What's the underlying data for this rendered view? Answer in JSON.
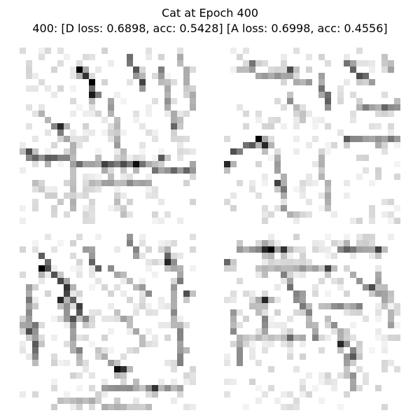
{
  "figure": {
    "title_line_1": "Cat at Epoch 400",
    "title_line_2": "400: [D loss: 0.6898, acc: 0.5428]  [A loss: 0.6998, acc: 0.4556]",
    "colormap": "gray_r",
    "background": "#ffffff"
  },
  "panels": [
    {
      "image_size": [
        28,
        28
      ],
      "strokes": [
        {
          "from": [
            9,
            3
          ],
          "to": [
            12,
            7
          ],
          "intensity": 0.9
        },
        {
          "from": [
            3,
            10
          ],
          "to": [
            8,
            15
          ],
          "intensity": 0.45
        },
        {
          "from": [
            1,
            17
          ],
          "to": [
            27,
            19
          ],
          "intensity": 0.55
        },
        {
          "from": [
            11,
            21
          ],
          "to": [
            20,
            21
          ],
          "intensity": 0.4
        },
        {
          "from": [
            17,
            1
          ],
          "to": [
            19,
            6
          ],
          "intensity": 0.65
        },
        {
          "from": [
            22,
            3
          ],
          "to": [
            24,
            12
          ],
          "intensity": 0.45
        },
        {
          "from": [
            14,
            8
          ],
          "to": [
            16,
            18
          ],
          "intensity": 0.35
        },
        {
          "from": [
            8,
            16
          ],
          "to": [
            8,
            25
          ],
          "intensity": 0.3
        },
        {
          "from": [
            15,
            23
          ],
          "to": [
            16,
            26
          ],
          "intensity": 0.3
        },
        {
          "from": [
            25,
            1
          ],
          "to": [
            27,
            9
          ],
          "intensity": 0.35
        },
        {
          "from": [
            2,
            21
          ],
          "to": [
            6,
            24
          ],
          "intensity": 0.25
        }
      ],
      "dots": [
        {
          "at": [
            9,
            3
          ],
          "intensity": 1.0
        },
        {
          "at": [
            11,
            7
          ],
          "intensity": 0.9
        },
        {
          "at": [
            6,
            12
          ],
          "intensity": 0.85
        },
        {
          "at": [
            18,
            18
          ],
          "intensity": 0.95
        },
        {
          "at": [
            1,
            16
          ],
          "intensity": 0.7
        },
        {
          "at": [
            13,
            18
          ],
          "intensity": 0.75
        },
        {
          "at": [
            16,
            18
          ],
          "intensity": 0.7
        },
        {
          "at": [
            22,
            17
          ],
          "intensity": 0.65
        },
        {
          "at": [
            24,
            12
          ],
          "intensity": 0.6
        }
      ],
      "noise_density": 0.22
    },
    {
      "image_size": [
        28,
        28
      ],
      "strokes": [
        {
          "from": [
            1,
            16
          ],
          "to": [
            5,
            14
          ],
          "intensity": 0.75
        },
        {
          "from": [
            8,
            17
          ],
          "to": [
            9,
            23
          ],
          "intensity": 0.55
        },
        {
          "from": [
            2,
            3
          ],
          "to": [
            13,
            5
          ],
          "intensity": 0.4
        },
        {
          "from": [
            15,
            5
          ],
          "to": [
            16,
            9
          ],
          "intensity": 0.55
        },
        {
          "from": [
            19,
            2
          ],
          "to": [
            23,
            5
          ],
          "intensity": 0.65
        },
        {
          "from": [
            20,
            14
          ],
          "to": [
            27,
            14
          ],
          "intensity": 0.5
        },
        {
          "from": [
            21,
            9
          ],
          "to": [
            27,
            9
          ],
          "intensity": 0.45
        },
        {
          "from": [
            10,
            8
          ],
          "to": [
            12,
            10
          ],
          "intensity": 0.4
        },
        {
          "from": [
            15,
            17
          ],
          "to": [
            16,
            25
          ],
          "intensity": 0.3
        },
        {
          "from": [
            9,
            25
          ],
          "to": [
            11,
            26
          ],
          "intensity": 0.4
        },
        {
          "from": [
            25,
            1
          ],
          "to": [
            26,
            3
          ],
          "intensity": 0.35
        }
      ],
      "dots": [
        {
          "at": [
            5,
            14
          ],
          "intensity": 1.0
        },
        {
          "at": [
            6,
            15
          ],
          "intensity": 0.85
        },
        {
          "at": [
            0,
            18
          ],
          "intensity": 0.85
        },
        {
          "at": [
            8,
            21
          ],
          "intensity": 0.75
        },
        {
          "at": [
            10,
            3
          ],
          "intensity": 0.7
        },
        {
          "at": [
            21,
            4
          ],
          "intensity": 0.7
        },
        {
          "at": [
            19,
            14
          ],
          "intensity": 0.65
        },
        {
          "at": [
            25,
            9
          ],
          "intensity": 0.6
        },
        {
          "at": [
            4,
            2
          ],
          "intensity": 0.55
        }
      ],
      "noise_density": 0.18
    },
    {
      "image_size": [
        28,
        28
      ],
      "strokes": [
        {
          "from": [
            3,
            3
          ],
          "to": [
            10,
            13
          ],
          "intensity": 0.7
        },
        {
          "from": [
            1,
            8
          ],
          "to": [
            2,
            19
          ],
          "intensity": 0.55
        },
        {
          "from": [
            7,
            11
          ],
          "to": [
            9,
            20
          ],
          "intensity": 0.45
        },
        {
          "from": [
            10,
            2
          ],
          "to": [
            12,
            5
          ],
          "intensity": 0.55
        },
        {
          "from": [
            14,
            5
          ],
          "to": [
            20,
            9
          ],
          "intensity": 0.45
        },
        {
          "from": [
            23,
            2
          ],
          "to": [
            25,
            7
          ],
          "intensity": 0.55
        },
        {
          "from": [
            24,
            8
          ],
          "to": [
            25,
            20
          ],
          "intensity": 0.45
        },
        {
          "from": [
            15,
            12
          ],
          "to": [
            19,
            16
          ],
          "intensity": 0.4
        },
        {
          "from": [
            12,
            18
          ],
          "to": [
            16,
            21
          ],
          "intensity": 0.4
        },
        {
          "from": [
            13,
            24
          ],
          "to": [
            25,
            24
          ],
          "intensity": 0.4
        },
        {
          "from": [
            6,
            26
          ],
          "to": [
            20,
            27
          ],
          "intensity": 0.3
        },
        {
          "from": [
            17,
            0
          ],
          "to": [
            18,
            3
          ],
          "intensity": 0.45
        }
      ],
      "dots": [
        {
          "at": [
            3,
            5
          ],
          "intensity": 1.0
        },
        {
          "at": [
            6,
            10
          ],
          "intensity": 0.85
        },
        {
          "at": [
            15,
            21
          ],
          "intensity": 0.95
        },
        {
          "at": [
            16,
            21
          ],
          "intensity": 0.8
        },
        {
          "at": [
            23,
            4
          ],
          "intensity": 0.85
        },
        {
          "at": [
            21,
            24
          ],
          "intensity": 0.8
        },
        {
          "at": [
            1,
            15
          ],
          "intensity": 0.7
        },
        {
          "at": [
            8,
            13
          ],
          "intensity": 0.7
        },
        {
          "at": [
            26,
            9
          ],
          "intensity": 0.7
        },
        {
          "at": [
            2,
            17
          ],
          "intensity": 0.65
        }
      ],
      "noise_density": 0.22
    },
    {
      "image_size": [
        28,
        28
      ],
      "strokes": [
        {
          "from": [
            2,
            2
          ],
          "to": [
            10,
            2
          ],
          "intensity": 0.5
        },
        {
          "from": [
            18,
            2
          ],
          "to": [
            24,
            2
          ],
          "intensity": 0.55
        },
        {
          "from": [
            5,
            5
          ],
          "to": [
            16,
            5
          ],
          "intensity": 0.4
        },
        {
          "from": [
            9,
            6
          ],
          "to": [
            12,
            11
          ],
          "intensity": 0.55
        },
        {
          "from": [
            5,
            10
          ],
          "to": [
            6,
            15
          ],
          "intensity": 0.45
        },
        {
          "from": [
            1,
            12
          ],
          "to": [
            2,
            20
          ],
          "intensity": 0.4
        },
        {
          "from": [
            12,
            9
          ],
          "to": [
            14,
            16
          ],
          "intensity": 0.45
        },
        {
          "from": [
            15,
            11
          ],
          "to": [
            21,
            11
          ],
          "intensity": 0.45
        },
        {
          "from": [
            20,
            6
          ],
          "to": [
            24,
            9
          ],
          "intensity": 0.5
        },
        {
          "from": [
            16,
            13
          ],
          "to": [
            20,
            18
          ],
          "intensity": 0.45
        },
        {
          "from": [
            19,
            19
          ],
          "to": [
            20,
            24
          ],
          "intensity": 0.4
        },
        {
          "from": [
            24,
            6
          ],
          "to": [
            26,
            14
          ],
          "intensity": 0.35
        },
        {
          "from": [
            2,
            16
          ],
          "to": [
            12,
            16
          ],
          "intensity": 0.3
        }
      ],
      "dots": [
        {
          "at": [
            7,
            2
          ],
          "intensity": 1.0
        },
        {
          "at": [
            6,
            2
          ],
          "intensity": 0.85
        },
        {
          "at": [
            9,
            2
          ],
          "intensity": 0.8
        },
        {
          "at": [
            6,
            10
          ],
          "intensity": 0.85
        },
        {
          "at": [
            18,
            17
          ],
          "intensity": 0.85
        },
        {
          "at": [
            16,
            5
          ],
          "intensity": 0.75
        },
        {
          "at": [
            24,
            2
          ],
          "intensity": 0.75
        },
        {
          "at": [
            23,
            8
          ],
          "intensity": 0.7
        },
        {
          "at": [
            20,
            19
          ],
          "intensity": 0.65
        },
        {
          "at": [
            0,
            4
          ],
          "intensity": 0.6
        },
        {
          "at": [
            10,
            16
          ],
          "intensity": 0.6
        }
      ],
      "noise_density": 0.24
    }
  ]
}
